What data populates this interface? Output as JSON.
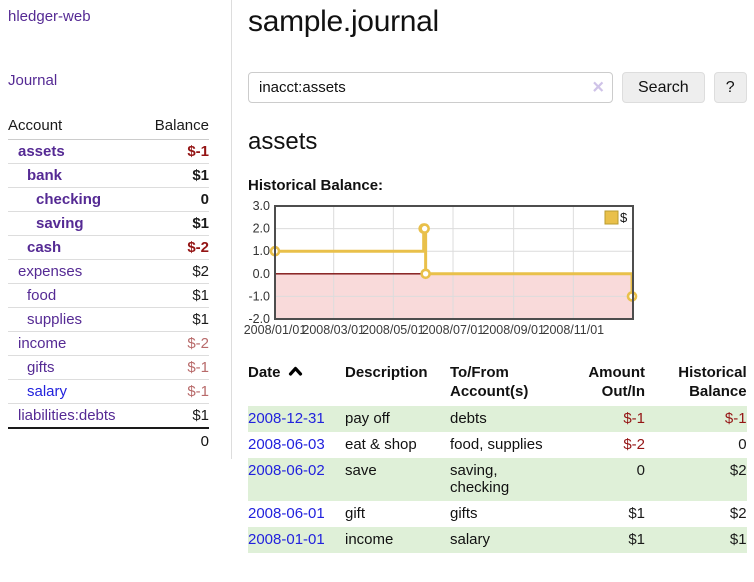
{
  "app": {
    "brand": "hledger-web",
    "nav_journal": "Journal"
  },
  "sidebar": {
    "account_header": "Account",
    "balance_header": "Balance",
    "accounts": [
      {
        "name": "assets",
        "balance": "$-1",
        "indent": 1,
        "in_focus": true,
        "balance_tone": "negative-strong"
      },
      {
        "name": "bank",
        "balance": "$1",
        "indent": 2,
        "in_focus": true,
        "balance_tone": "normal"
      },
      {
        "name": "checking",
        "balance": "0",
        "indent": 3,
        "in_focus": true,
        "balance_tone": "normal"
      },
      {
        "name": "saving",
        "balance": "$1",
        "indent": 3,
        "in_focus": true,
        "balance_tone": "normal"
      },
      {
        "name": "cash",
        "balance": "$-2",
        "indent": 2,
        "in_focus": true,
        "balance_tone": "negative-strong"
      },
      {
        "name": "expenses",
        "balance": "$2",
        "indent": 1,
        "in_focus": false,
        "balance_tone": "normal"
      },
      {
        "name": "food",
        "balance": "$1",
        "indent": 2,
        "in_focus": false,
        "balance_tone": "normal"
      },
      {
        "name": "supplies",
        "balance": "$1",
        "indent": 2,
        "in_focus": false,
        "balance_tone": "normal"
      },
      {
        "name": "income",
        "balance": "$-2",
        "indent": 1,
        "in_focus": false,
        "balance_tone": "negative-muted"
      },
      {
        "name": "gifts",
        "balance": "$-1",
        "indent": 2,
        "in_focus": false,
        "balance_tone": "negative-muted"
      },
      {
        "name": "salary",
        "balance": "$-1",
        "indent": 2,
        "in_focus": false,
        "balance_tone": "negative-muted",
        "link_state": "unvisited"
      },
      {
        "name": "liabilities:debts",
        "balance": "$1",
        "indent": 1,
        "in_focus": false,
        "balance_tone": "normal"
      }
    ],
    "total": "0"
  },
  "main": {
    "title": "sample.journal",
    "search": {
      "value": "inacct:assets",
      "clear_icon": "×",
      "button_label": "Search",
      "help_label": "?"
    },
    "account_title": "assets"
  },
  "chart_data": {
    "type": "line",
    "title": "Historical Balance:",
    "step": "after",
    "x_range": [
      "2008-01-01",
      "2009-01-01"
    ],
    "ylim": [
      -2,
      3
    ],
    "y_ticks": [
      {
        "label": "3.0",
        "value": 3
      },
      {
        "label": "2.0",
        "value": 2
      },
      {
        "label": "1.0",
        "value": 1
      },
      {
        "label": "0.0",
        "value": 0
      },
      {
        "label": "-1.0",
        "value": -1
      },
      {
        "label": "-2.0",
        "value": -2
      }
    ],
    "x_ticks": [
      {
        "label": "2008/01/01",
        "date": "2008-01-01"
      },
      {
        "label": "2008/03/01",
        "date": "2008-03-01"
      },
      {
        "label": "2008/05/01",
        "date": "2008-05-01"
      },
      {
        "label": "2008/07/01",
        "date": "2008-07-01"
      },
      {
        "label": "2008/09/01",
        "date": "2008-09-01"
      },
      {
        "label": "2008/11/01",
        "date": "2008-11-01"
      }
    ],
    "series": [
      {
        "name": "$",
        "points": [
          [
            "2008-01-01",
            1
          ],
          [
            "2008-06-01",
            2
          ],
          [
            "2008-06-02",
            2
          ],
          [
            "2008-06-03",
            0
          ],
          [
            "2008-12-31",
            -1
          ]
        ]
      }
    ],
    "legend": [
      {
        "label": "$",
        "color": "#e9c04a"
      }
    ],
    "grid": true,
    "legend_position": "top-right",
    "colors": {
      "line": "#e9c04a",
      "marker_fill": "#ffffff",
      "negative_region": "#f9dada",
      "zero_line": "#7d0d0d",
      "grid": "#dcdcdc",
      "border": "#4d4d4d"
    }
  },
  "register": {
    "headers": [
      {
        "key": "date",
        "label": "Date",
        "align": "left",
        "sorted": "asc"
      },
      {
        "key": "description",
        "label": "Description",
        "align": "left"
      },
      {
        "key": "accounts",
        "label": "To/From\nAccount(s)",
        "align": "left"
      },
      {
        "key": "amount",
        "label": "Amount\nOut/In",
        "align": "right"
      },
      {
        "key": "balance",
        "label": "Historical\nBalance",
        "align": "right"
      }
    ],
    "rows": [
      {
        "date": "2008-12-31",
        "description": "pay off",
        "accounts": "debts",
        "amount": "$-1",
        "amount_tone": "negative",
        "balance": "$-1",
        "balance_tone": "negative"
      },
      {
        "date": "2008-06-03",
        "description": "eat & shop",
        "accounts": "food, supplies",
        "amount": "$-2",
        "amount_tone": "negative",
        "balance": "0",
        "balance_tone": "normal"
      },
      {
        "date": "2008-06-02",
        "description": "save",
        "accounts": "saving,\nchecking",
        "amount": "0",
        "amount_tone": "normal",
        "balance": "$2",
        "balance_tone": "normal"
      },
      {
        "date": "2008-06-01",
        "description": "gift",
        "accounts": "gifts",
        "amount": "$1",
        "amount_tone": "normal",
        "balance": "$2",
        "balance_tone": "normal"
      },
      {
        "date": "2008-01-01",
        "description": "income",
        "accounts": "salary",
        "amount": "$1",
        "amount_tone": "normal",
        "balance": "$1",
        "balance_tone": "normal"
      }
    ]
  },
  "colors": {
    "link_purple": "#552a94",
    "link_blue": "#2222dd",
    "negative_strong": "#941414",
    "negative_muted": "#b86a6a",
    "row_stripe_green": "#dff0d8",
    "accent_gold": "#e9c04a"
  }
}
